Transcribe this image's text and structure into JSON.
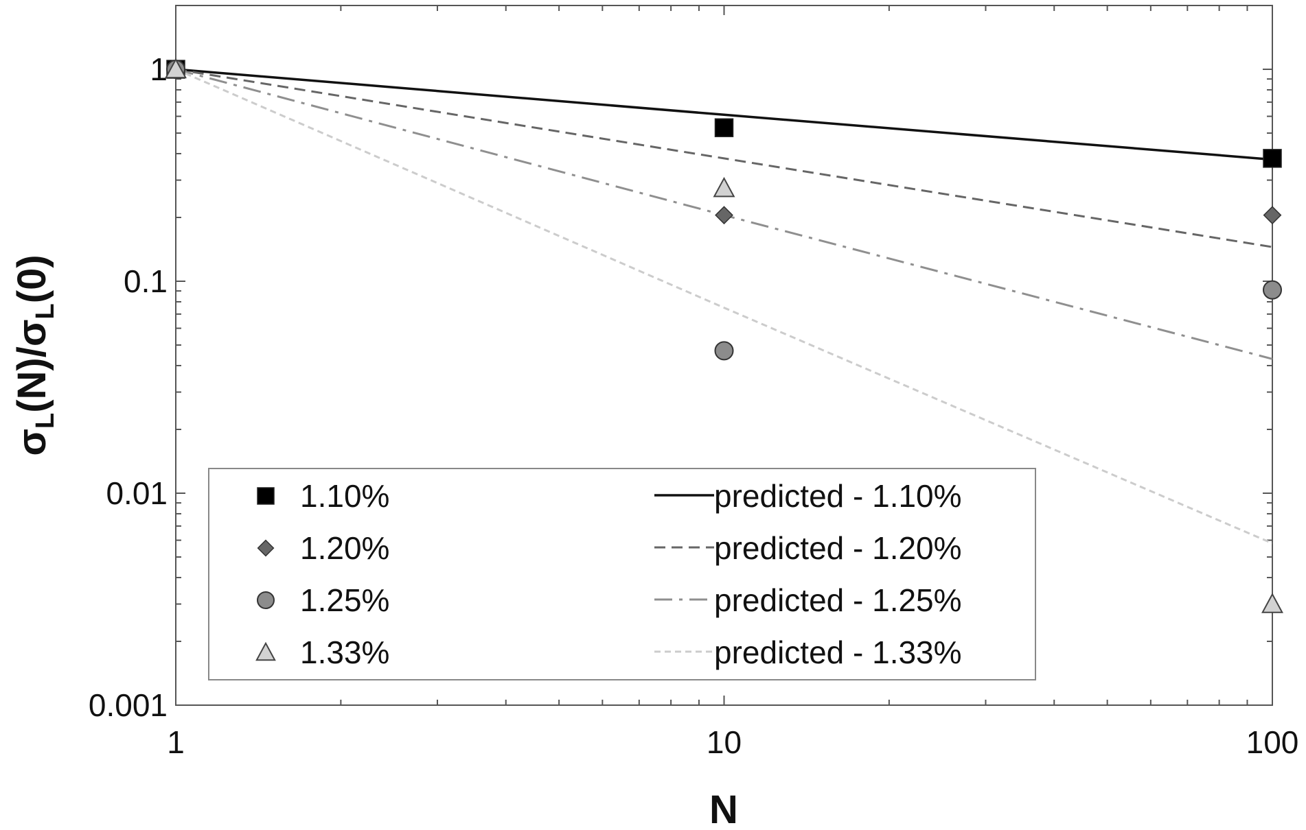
{
  "chart_data": {
    "type": "scatter",
    "x_scale": "log",
    "y_scale": "log",
    "xlim": [
      1,
      100
    ],
    "ylim": [
      0.001,
      2
    ],
    "xlabel": "N",
    "ylabel_parts": {
      "sigma1": "σ",
      "sub1": "L",
      "mid": "(N)/",
      "sigma2": "σ",
      "sub2": "L",
      "end": "(0)"
    },
    "x_ticks": [
      {
        "value": 1,
        "label": "1"
      },
      {
        "value": 10,
        "label": "10"
      },
      {
        "value": 100,
        "label": "100"
      }
    ],
    "y_ticks": [
      {
        "value": 1,
        "label": "1"
      },
      {
        "value": 0.1,
        "label": "0.1"
      },
      {
        "value": 0.01,
        "label": "0.01"
      },
      {
        "value": 0.001,
        "label": "0.001"
      }
    ],
    "grid": false,
    "legend_position": "bottom-left",
    "series": [
      {
        "name": "1.10%",
        "kind": "points",
        "marker": "square",
        "color": "#000000",
        "x": [
          1,
          10,
          100
        ],
        "y": [
          1,
          0.53,
          0.38
        ]
      },
      {
        "name": "1.20%",
        "kind": "points",
        "marker": "diamond",
        "color": "#666666",
        "x": [
          1,
          10,
          100
        ],
        "y": [
          1,
          0.205,
          0.205
        ]
      },
      {
        "name": "1.25%",
        "kind": "points",
        "marker": "circle",
        "color": "#8c8c8c",
        "x": [
          1,
          10,
          100
        ],
        "y": [
          1,
          0.047,
          0.091
        ]
      },
      {
        "name": "1.33%",
        "kind": "points",
        "marker": "triangle",
        "color": "#d2d2d2",
        "x": [
          1,
          10,
          100
        ],
        "y": [
          1,
          0.275,
          0.003
        ]
      },
      {
        "name": "predicted - 1.10%",
        "kind": "line",
        "dash": "solid",
        "color": "#111111",
        "x": [
          1,
          10,
          100
        ],
        "y": [
          1,
          0.61,
          0.375
        ]
      },
      {
        "name": "predicted - 1.20%",
        "kind": "line",
        "dash": "dashed",
        "color": "#666666",
        "x": [
          1,
          10,
          100
        ],
        "y": [
          1,
          0.38,
          0.145
        ]
      },
      {
        "name": "predicted - 1.25%",
        "kind": "line",
        "dash": "dashdot",
        "color": "#8f8f8f",
        "x": [
          1,
          10,
          100
        ],
        "y": [
          1,
          0.205,
          0.043
        ]
      },
      {
        "name": "predicted - 1.33%",
        "kind": "line",
        "dash": "shortdash",
        "color": "#cccccc",
        "x": [
          1,
          10,
          100
        ],
        "y": [
          1,
          0.075,
          0.0058
        ]
      }
    ]
  }
}
